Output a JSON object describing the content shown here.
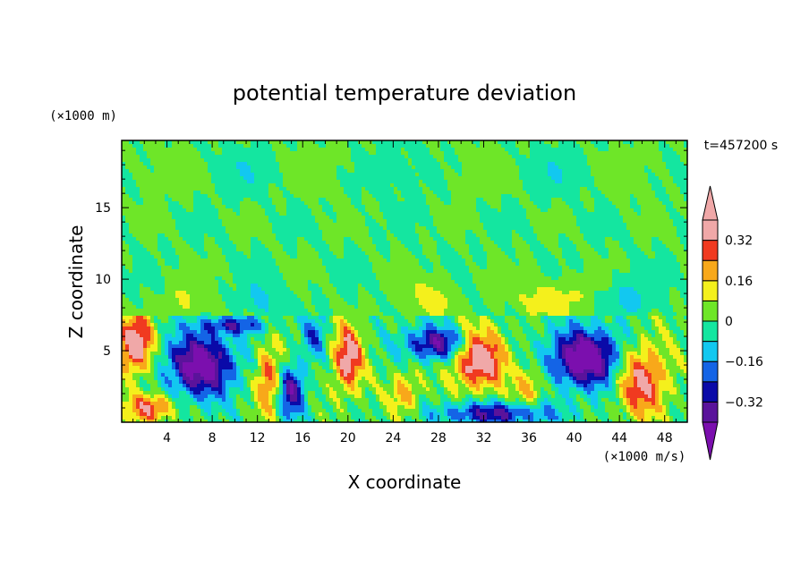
{
  "chart_data": {
    "type": "heatmap",
    "title": "potential temperature deviation",
    "xlabel": "X coordinate",
    "ylabel": "Z coordinate",
    "x_unit": "(×1000 m/s)",
    "y_unit": "(×1000 m)",
    "time_label": "t=457200 s",
    "xlim": [
      0,
      50
    ],
    "ylim": [
      0,
      19.7
    ],
    "x_ticks": [
      "4",
      "8",
      "12",
      "16",
      "20",
      "24",
      "28",
      "32",
      "36",
      "40",
      "44",
      "48"
    ],
    "y_ticks": [
      "5",
      "10",
      "15"
    ],
    "colorbar": {
      "tick_labels": [
        "0.32",
        "0.16",
        "0",
        "−0.16",
        "−0.32"
      ],
      "levels": [
        -0.4,
        -0.32,
        -0.24,
        -0.16,
        -0.08,
        0,
        0.08,
        0.16,
        0.24,
        0.32,
        0.4
      ],
      "colors": [
        "#7b0fae",
        "#5a139b",
        "#0a0aa8",
        "#1464e6",
        "#12c8f0",
        "#14e6a0",
        "#6ee628",
        "#f4f01c",
        "#f8a81a",
        "#f03a20",
        "#f0a8a8"
      ]
    },
    "grid": false,
    "legend": "colorbar right"
  }
}
